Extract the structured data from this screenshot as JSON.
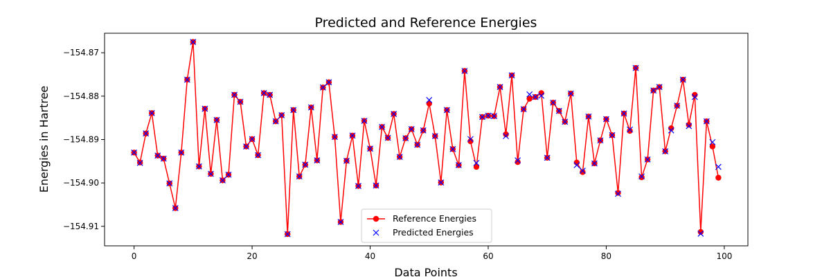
{
  "chart_data": {
    "type": "line",
    "title": "Predicted and Reference Energies",
    "xlabel": "Data Points",
    "ylabel": "Energies in Hartree",
    "xlim": [
      -5,
      104
    ],
    "ylim": [
      -154.9145,
      -154.8655
    ],
    "xticks": [
      0,
      20,
      40,
      60,
      80,
      100
    ],
    "yticks": [
      -154.91,
      -154.9,
      -154.89,
      -154.88,
      -154.87
    ],
    "ytick_labels": [
      "−154.91",
      "−154.90",
      "−154.89",
      "−154.88",
      "−154.87"
    ],
    "grid": false,
    "legend": {
      "position": "bottom-center"
    },
    "series": [
      {
        "name": "Reference Energies",
        "style": "line-with-circles",
        "color": "#ff0000",
        "values": [
          -154.893,
          -154.8953,
          -154.8886,
          -154.8839,
          -154.8937,
          -154.8944,
          -154.9001,
          -154.9058,
          -154.893,
          -154.8762,
          -154.8675,
          -154.8962,
          -154.8829,
          -154.8979,
          -154.8855,
          -154.8994,
          -154.8981,
          -154.8797,
          -154.8813,
          -154.8916,
          -154.8899,
          -154.8936,
          -154.8793,
          -154.8797,
          -154.8858,
          -154.8844,
          -154.9118,
          -154.8832,
          -154.8985,
          -154.8958,
          -154.8826,
          -154.8948,
          -154.878,
          -154.8768,
          -154.8894,
          -154.909,
          -154.8949,
          -154.8891,
          -154.9007,
          -154.8857,
          -154.8921,
          -154.9006,
          -154.8871,
          -154.8896,
          -154.8841,
          -154.894,
          -154.8897,
          -154.8876,
          -154.8912,
          -154.8879,
          -154.8817,
          -154.8892,
          -154.8999,
          -154.8832,
          -154.8922,
          -154.8959,
          -154.8742,
          -154.8904,
          -154.8963,
          -154.8848,
          -154.8845,
          -154.8846,
          -154.8779,
          -154.8888,
          -154.8752,
          -154.8952,
          -154.883,
          -154.8806,
          -154.8802,
          -154.8793,
          -154.8942,
          -154.8815,
          -154.8834,
          -154.8859,
          -154.8794,
          -154.8953,
          -154.8975,
          -154.8847,
          -154.8955,
          -154.8902,
          -154.8853,
          -154.889,
          -154.9023,
          -154.884,
          -154.888,
          -154.8735,
          -154.8987,
          -154.8946,
          -154.8787,
          -154.8779,
          -154.8927,
          -154.8874,
          -154.8822,
          -154.8762,
          -154.8866,
          -154.8797,
          -154.9113,
          -154.8858,
          -154.8916,
          -154.8988
        ]
      },
      {
        "name": "Predicted Energies",
        "style": "x-markers",
        "color": "#0000ff",
        "values": [
          -154.893,
          -154.8954,
          -154.8886,
          -154.8839,
          -154.8937,
          -154.8944,
          -154.9001,
          -154.9058,
          -154.893,
          -154.8762,
          -154.8675,
          -154.8962,
          -154.8829,
          -154.8979,
          -154.8855,
          -154.8994,
          -154.8981,
          -154.8797,
          -154.8813,
          -154.8916,
          -154.8899,
          -154.8936,
          -154.8793,
          -154.8797,
          -154.8858,
          -154.8844,
          -154.9118,
          -154.8832,
          -154.8985,
          -154.8958,
          -154.8826,
          -154.8948,
          -154.878,
          -154.8768,
          -154.8894,
          -154.909,
          -154.8949,
          -154.8891,
          -154.9007,
          -154.8857,
          -154.8921,
          -154.9006,
          -154.8871,
          -154.8896,
          -154.8841,
          -154.894,
          -154.8897,
          -154.8876,
          -154.8912,
          -154.8879,
          -154.8809,
          -154.8892,
          -154.8999,
          -154.8832,
          -154.8922,
          -154.8959,
          -154.8742,
          -154.8899,
          -154.8954,
          -154.8848,
          -154.8845,
          -154.8846,
          -154.8779,
          -154.8892,
          -154.8752,
          -154.8948,
          -154.883,
          -154.8796,
          -154.8802,
          -154.8799,
          -154.8942,
          -154.8815,
          -154.8834,
          -154.8859,
          -154.8794,
          -154.8959,
          -154.8972,
          -154.8847,
          -154.8955,
          -154.8902,
          -154.8853,
          -154.889,
          -154.9025,
          -154.884,
          -154.8877,
          -154.8735,
          -154.8985,
          -154.8946,
          -154.8787,
          -154.8779,
          -154.8927,
          -154.8879,
          -154.8822,
          -154.8762,
          -154.8869,
          -154.8802,
          -154.9117,
          -154.8858,
          -154.8906,
          -154.8963
        ]
      }
    ]
  }
}
